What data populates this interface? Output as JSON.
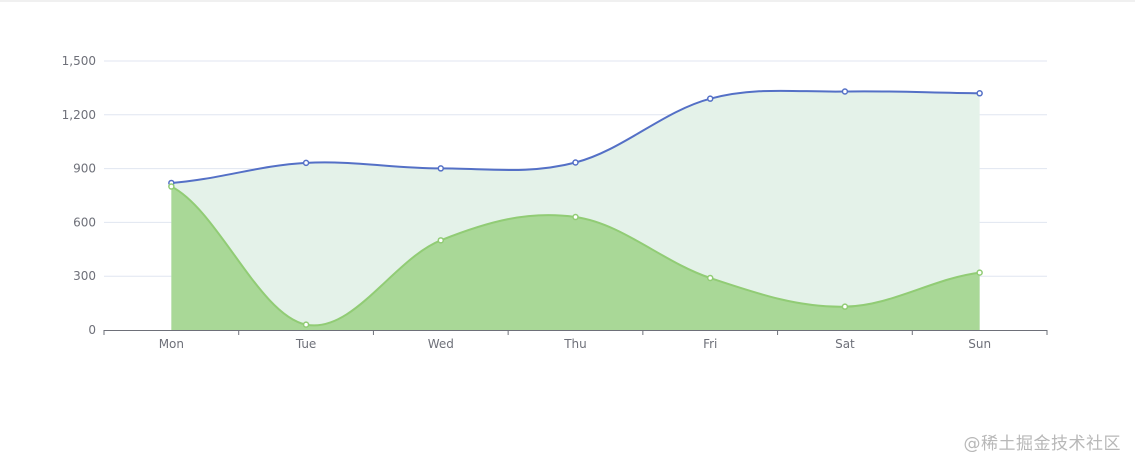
{
  "chart_data": {
    "type": "area",
    "categories": [
      "Mon",
      "Tue",
      "Wed",
      "Thu",
      "Fri",
      "Sat",
      "Sun"
    ],
    "series": [
      {
        "values": [
          820,
          932,
          901,
          934,
          1290,
          1330,
          1320
        ],
        "line_color": "#5470c6",
        "fill_color": "#e4f2e9",
        "smooth": true
      },
      {
        "values": [
          800,
          30,
          500,
          630,
          290,
          130,
          320
        ],
        "line_color": "#91cc75",
        "fill_color": "#a9d897",
        "smooth": true
      }
    ],
    "ylim": [
      0,
      1500
    ],
    "yticks": [
      "0",
      "300",
      "600",
      "900",
      "1,200",
      "1,500"
    ],
    "ytick_values": [
      0,
      300,
      600,
      900,
      1200,
      1500
    ],
    "grid": true,
    "title": "",
    "xlabel": "",
    "ylabel": ""
  },
  "watermark": "@稀土掘金技术社区"
}
